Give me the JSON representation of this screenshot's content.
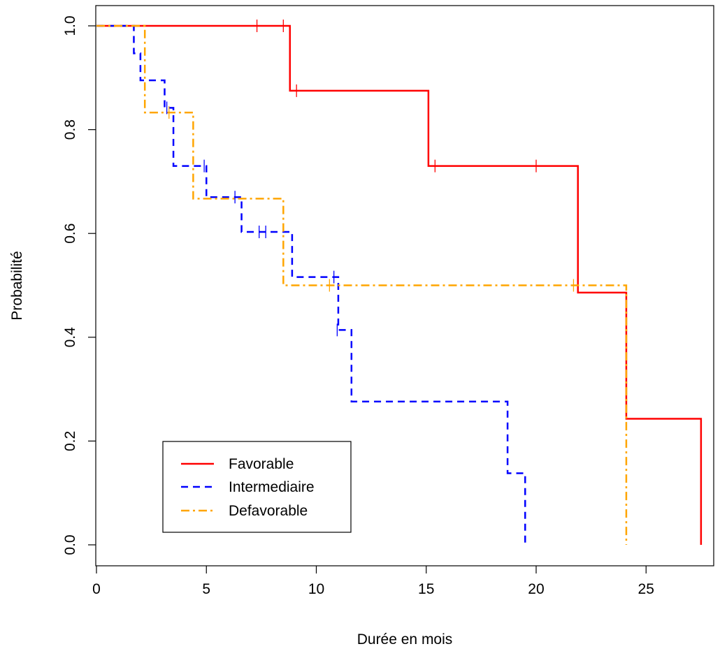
{
  "chart_data": {
    "type": "line",
    "subtype": "kaplan-meier step curves",
    "title": "",
    "xlabel": "Durée en mois",
    "ylabel": "Probabilité",
    "xlim": [
      0,
      27.6
    ],
    "ylim": [
      0,
      1
    ],
    "xticks": [
      0,
      5,
      10,
      15,
      20,
      25
    ],
    "yticks": [
      0.0,
      0.2,
      0.4,
      0.6,
      0.8,
      1.0
    ],
    "xtick_labels": [
      "0",
      "5",
      "10",
      "15",
      "20",
      "25"
    ],
    "ytick_labels": [
      "0.0",
      "0.2",
      "0.4",
      "0.6",
      "0.8",
      "1.0"
    ],
    "grid": false,
    "legend_position": "bottom-left",
    "series": [
      {
        "name": "Favorable",
        "color": "#ff0000",
        "line_style": "solid",
        "steps": [
          [
            0,
            1.0
          ],
          [
            8.8,
            0.875
          ],
          [
            15.1,
            0.73
          ],
          [
            21.9,
            0.486
          ],
          [
            24.1,
            0.243
          ],
          [
            27.5,
            0.0
          ]
        ],
        "end_x": 27.5,
        "censored": [
          [
            7.3,
            1.0
          ],
          [
            8.5,
            1.0
          ],
          [
            9.1,
            0.875
          ],
          [
            15.4,
            0.73
          ],
          [
            20.0,
            0.73
          ]
        ]
      },
      {
        "name": "Intermediaire",
        "color": "#0000ff",
        "line_style": "dashed",
        "steps": [
          [
            0,
            1.0
          ],
          [
            1.7,
            0.947
          ],
          [
            2.0,
            0.895
          ],
          [
            3.1,
            0.842
          ],
          [
            3.5,
            0.73
          ],
          [
            5.0,
            0.67
          ],
          [
            6.6,
            0.603
          ],
          [
            8.9,
            0.516
          ],
          [
            11.0,
            0.414
          ],
          [
            11.6,
            0.276
          ],
          [
            18.7,
            0.138
          ],
          [
            19.5,
            0.0
          ]
        ],
        "end_x": 19.5,
        "censored": [
          [
            3.2,
            0.842
          ],
          [
            4.9,
            0.73
          ],
          [
            6.3,
            0.67
          ],
          [
            7.4,
            0.603
          ],
          [
            7.7,
            0.603
          ],
          [
            10.8,
            0.516
          ],
          [
            10.95,
            0.414
          ]
        ]
      },
      {
        "name": "Defavorable",
        "color": "#ffa500",
        "line_style": "dashdot",
        "steps": [
          [
            0,
            1.0
          ],
          [
            2.2,
            0.833
          ],
          [
            4.4,
            0.667
          ],
          [
            8.5,
            0.5
          ],
          [
            24.1,
            0.0
          ]
        ],
        "end_x": 24.1,
        "censored": [
          [
            3.3,
            0.833
          ],
          [
            10.6,
            0.5
          ],
          [
            21.7,
            0.5
          ]
        ]
      }
    ]
  }
}
